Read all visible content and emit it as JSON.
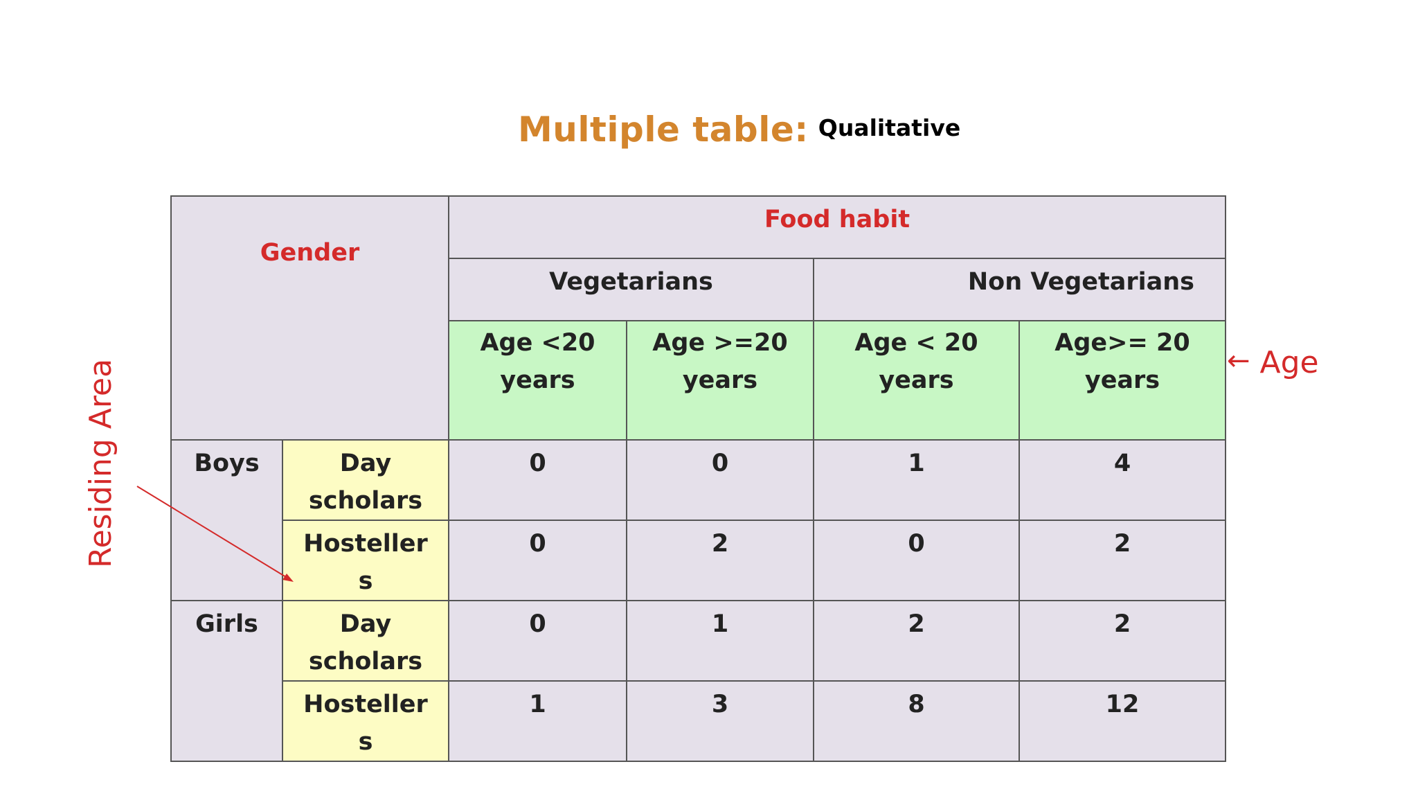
{
  "title": {
    "main": "Multiple table:",
    "sub": "Qualitative"
  },
  "annotations": {
    "side_label": "Residing Area",
    "age_label": "Age",
    "age_arrow": "←",
    "color": "#d42a2a"
  },
  "table": {
    "gender_header": "Gender",
    "food_header": "Food habit",
    "groups": [
      "Vegetarians",
      "Non Vegetarians"
    ],
    "age_headers": [
      {
        "line1": "Age <20",
        "line2": "years"
      },
      {
        "line1": "Age >=20",
        "line2": "years"
      },
      {
        "line1": "Age < 20",
        "line2": "years"
      },
      {
        "line1": "Age>= 20",
        "line2": "years"
      }
    ],
    "rows": [
      {
        "gender": "Boys",
        "residence": [
          "Day",
          "scholars"
        ],
        "values": [
          "0",
          "0",
          "1",
          "4"
        ]
      },
      {
        "gender": "",
        "residence": [
          "Hosteller",
          "s"
        ],
        "values": [
          "0",
          "2",
          "0",
          "2"
        ]
      },
      {
        "gender": "Girls",
        "residence": [
          "Day",
          "scholars"
        ],
        "values": [
          "0",
          "1",
          "2",
          "2"
        ]
      },
      {
        "gender": "",
        "residence": [
          "Hosteller",
          "s"
        ],
        "values": [
          "1",
          "3",
          "8",
          "12"
        ]
      }
    ],
    "colors": {
      "header_bg": "#e5e0ea",
      "age_bg": "#c8f7c5",
      "residence_bg": "#fdfcc4",
      "title_orange": "#d3852d",
      "red_text": "#d42a2a"
    }
  }
}
